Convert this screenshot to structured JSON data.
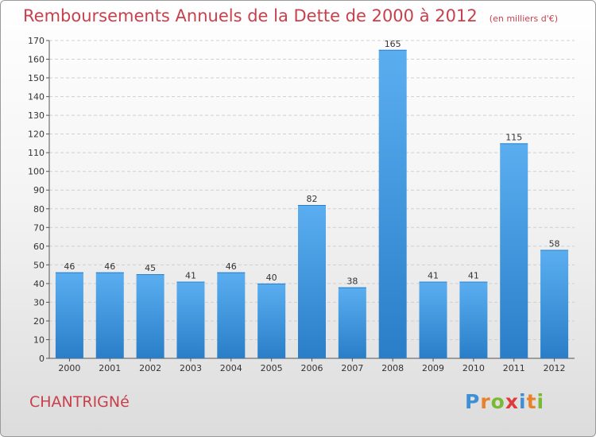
{
  "chart_data": {
    "type": "bar",
    "title": "Remboursements Annuels de la Dette de 2000 à 2012",
    "subtitle": "(en milliers d'€)",
    "categories": [
      "2000",
      "2001",
      "2002",
      "2003",
      "2004",
      "2005",
      "2006",
      "2007",
      "2008",
      "2009",
      "2010",
      "2011",
      "2012"
    ],
    "values": [
      46,
      46,
      45,
      41,
      46,
      40,
      82,
      38,
      165,
      41,
      41,
      115,
      58
    ],
    "ylim": [
      0,
      170
    ],
    "yticks": [
      0,
      10,
      20,
      30,
      40,
      50,
      60,
      70,
      80,
      90,
      100,
      110,
      120,
      130,
      140,
      150,
      160,
      170
    ],
    "grid": true,
    "bar_color": "#3a8fd8"
  },
  "footer": {
    "commune": "CHANTRIGNé",
    "logo_letters": [
      "P",
      "r",
      "o",
      "x",
      "i",
      "t",
      "i"
    ],
    "logo_colors": [
      "#3f8fd6",
      "#e8812a",
      "#7ab934",
      "#e03a3a",
      "#3f8fd6",
      "#e8812a",
      "#7ab934"
    ]
  }
}
